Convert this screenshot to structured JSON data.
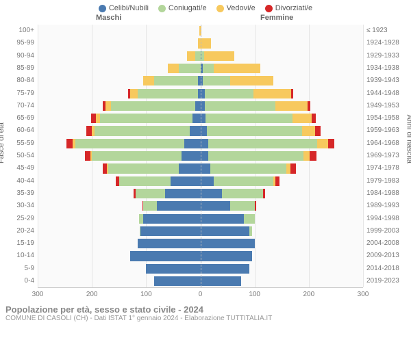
{
  "legend": {
    "items": [
      {
        "label": "Celibi/Nubili",
        "color": "#4a7ab0"
      },
      {
        "label": "Coniugati/e",
        "color": "#b3d69b"
      },
      {
        "label": "Vedovi/e",
        "color": "#f7c95e"
      },
      {
        "label": "Divorziati/e",
        "color": "#d62728"
      }
    ]
  },
  "headers": {
    "male": "Maschi",
    "female": "Femmine"
  },
  "axis": {
    "y_left_label": "Fasce di età",
    "y_right_label": "Anni di nascita",
    "x_max": 300,
    "x_ticks": [
      300,
      200,
      100,
      0,
      100,
      200,
      300
    ]
  },
  "colors": {
    "celibi": "#4a7ab0",
    "coniugati": "#b3d69b",
    "vedovi": "#f7c95e",
    "divorziati": "#d62728",
    "grid": "#e5e5e5",
    "center": "#bbbbbb",
    "bg": "#fafafa"
  },
  "rows": [
    {
      "age": "100+",
      "birth": "≤ 1923",
      "m": {
        "cel": 0,
        "con": 0,
        "ved": 2,
        "div": 0
      },
      "f": {
        "cel": 0,
        "con": 0,
        "ved": 2,
        "div": 0
      }
    },
    {
      "age": "95-99",
      "birth": "1924-1928",
      "m": {
        "cel": 0,
        "con": 0,
        "ved": 5,
        "div": 0
      },
      "f": {
        "cel": 0,
        "con": 0,
        "ved": 20,
        "div": 0
      }
    },
    {
      "age": "90-94",
      "birth": "1929-1933",
      "m": {
        "cel": 0,
        "con": 10,
        "ved": 15,
        "div": 0
      },
      "f": {
        "cel": 2,
        "con": 5,
        "ved": 55,
        "div": 0
      }
    },
    {
      "age": "85-89",
      "birth": "1934-1938",
      "m": {
        "cel": 0,
        "con": 40,
        "ved": 20,
        "div": 0
      },
      "f": {
        "cel": 5,
        "con": 20,
        "ved": 85,
        "div": 0
      }
    },
    {
      "age": "80-84",
      "birth": "1939-1943",
      "m": {
        "cel": 5,
        "con": 80,
        "ved": 20,
        "div": 0
      },
      "f": {
        "cel": 5,
        "con": 50,
        "ved": 80,
        "div": 0
      }
    },
    {
      "age": "75-79",
      "birth": "1944-1948",
      "m": {
        "cel": 5,
        "con": 110,
        "ved": 15,
        "div": 3
      },
      "f": {
        "cel": 8,
        "con": 90,
        "ved": 70,
        "div": 3
      }
    },
    {
      "age": "70-74",
      "birth": "1949-1953",
      "m": {
        "cel": 10,
        "con": 155,
        "ved": 10,
        "div": 5
      },
      "f": {
        "cel": 8,
        "con": 130,
        "ved": 60,
        "div": 5
      }
    },
    {
      "age": "65-69",
      "birth": "1954-1958",
      "m": {
        "cel": 15,
        "con": 170,
        "ved": 8,
        "div": 8
      },
      "f": {
        "cel": 10,
        "con": 160,
        "ved": 35,
        "div": 8
      }
    },
    {
      "age": "60-64",
      "birth": "1959-1963",
      "m": {
        "cel": 20,
        "con": 175,
        "ved": 5,
        "div": 10
      },
      "f": {
        "cel": 12,
        "con": 175,
        "ved": 25,
        "div": 10
      }
    },
    {
      "age": "55-59",
      "birth": "1964-1968",
      "m": {
        "cel": 30,
        "con": 200,
        "ved": 5,
        "div": 12
      },
      "f": {
        "cel": 15,
        "con": 200,
        "ved": 20,
        "div": 12
      }
    },
    {
      "age": "50-54",
      "birth": "1969-1973",
      "m": {
        "cel": 35,
        "con": 165,
        "ved": 3,
        "div": 10
      },
      "f": {
        "cel": 15,
        "con": 175,
        "ved": 12,
        "div": 12
      }
    },
    {
      "age": "45-49",
      "birth": "1974-1978",
      "m": {
        "cel": 40,
        "con": 130,
        "ved": 2,
        "div": 8
      },
      "f": {
        "cel": 18,
        "con": 140,
        "ved": 8,
        "div": 10
      }
    },
    {
      "age": "40-44",
      "birth": "1979-1983",
      "m": {
        "cel": 55,
        "con": 95,
        "ved": 0,
        "div": 6
      },
      "f": {
        "cel": 25,
        "con": 110,
        "ved": 3,
        "div": 8
      }
    },
    {
      "age": "35-39",
      "birth": "1984-1988",
      "m": {
        "cel": 65,
        "con": 55,
        "ved": 0,
        "div": 3
      },
      "f": {
        "cel": 40,
        "con": 75,
        "ved": 0,
        "div": 5
      }
    },
    {
      "age": "30-34",
      "birth": "1989-1993",
      "m": {
        "cel": 80,
        "con": 25,
        "ved": 0,
        "div": 2
      },
      "f": {
        "cel": 55,
        "con": 45,
        "ved": 0,
        "div": 3
      }
    },
    {
      "age": "25-29",
      "birth": "1994-1998",
      "m": {
        "cel": 105,
        "con": 8,
        "ved": 0,
        "div": 0
      },
      "f": {
        "cel": 80,
        "con": 20,
        "ved": 0,
        "div": 0
      }
    },
    {
      "age": "20-24",
      "birth": "1999-2003",
      "m": {
        "cel": 110,
        "con": 2,
        "ved": 0,
        "div": 0
      },
      "f": {
        "cel": 90,
        "con": 5,
        "ved": 0,
        "div": 0
      }
    },
    {
      "age": "15-19",
      "birth": "2004-2008",
      "m": {
        "cel": 115,
        "con": 0,
        "ved": 0,
        "div": 0
      },
      "f": {
        "cel": 100,
        "con": 0,
        "ved": 0,
        "div": 0
      }
    },
    {
      "age": "10-14",
      "birth": "2009-2013",
      "m": {
        "cel": 130,
        "con": 0,
        "ved": 0,
        "div": 0
      },
      "f": {
        "cel": 95,
        "con": 0,
        "ved": 0,
        "div": 0
      }
    },
    {
      "age": "5-9",
      "birth": "2014-2018",
      "m": {
        "cel": 100,
        "con": 0,
        "ved": 0,
        "div": 0
      },
      "f": {
        "cel": 90,
        "con": 0,
        "ved": 0,
        "div": 0
      }
    },
    {
      "age": "0-4",
      "birth": "2019-2023",
      "m": {
        "cel": 85,
        "con": 0,
        "ved": 0,
        "div": 0
      },
      "f": {
        "cel": 75,
        "con": 0,
        "ved": 0,
        "div": 0
      }
    }
  ],
  "footer": {
    "title": "Popolazione per età, sesso e stato civile - 2024",
    "sub": "COMUNE DI CASOLI (CH) - Dati ISTAT 1° gennaio 2024 - Elaborazione TUTTITALIA.IT"
  }
}
